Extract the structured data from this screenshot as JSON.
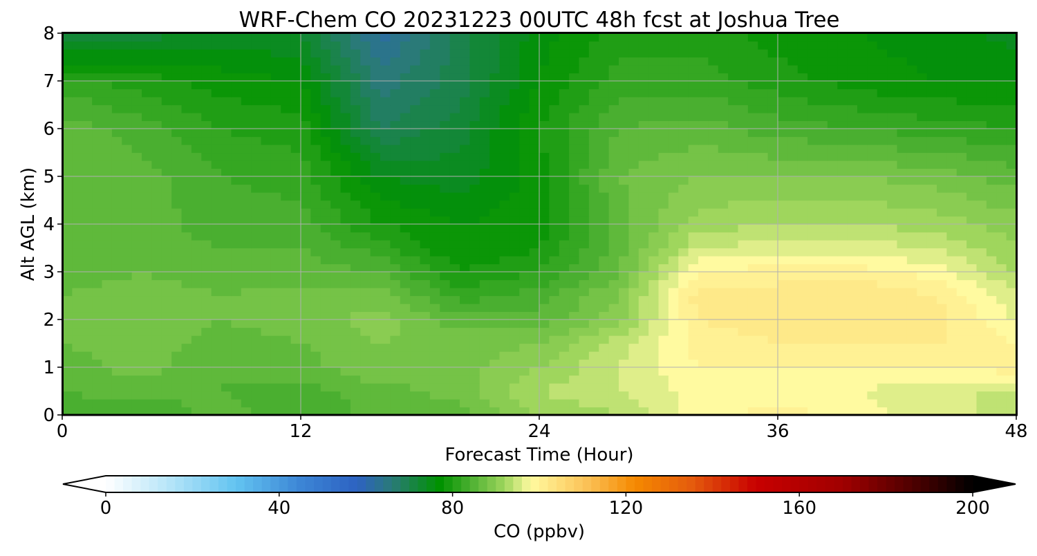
{
  "chart_data": {
    "type": "heatmap",
    "title": "WRF-Chem CO  20231223 00UTC 48h fcst at Joshua Tree",
    "xlabel": "Forecast Time (Hour)",
    "ylabel": "Alt AGL (km)",
    "xlim": [
      0,
      48
    ],
    "ylim": [
      0,
      8
    ],
    "x_ticks": [
      0,
      12,
      24,
      36,
      48
    ],
    "y_ticks": [
      0,
      1,
      2,
      3,
      4,
      5,
      6,
      7,
      8
    ],
    "grid": true,
    "x_hours": [
      0,
      4,
      8,
      12,
      16,
      20,
      24,
      28,
      32,
      36,
      40,
      44,
      48
    ],
    "z_km": [
      0,
      0.5,
      1,
      1.5,
      2,
      2.5,
      3,
      3.5,
      4,
      5,
      6,
      7,
      8
    ],
    "co_ppbv": [
      [
        84,
        83,
        86,
        83,
        86,
        86,
        91,
        93,
        98,
        100,
        98,
        96,
        94
      ],
      [
        85,
        86,
        85,
        84,
        86,
        88,
        93,
        95,
        98,
        98,
        97,
        95,
        95
      ],
      [
        86,
        88,
        85,
        86,
        89,
        88,
        91,
        95,
        99,
        99,
        99,
        99,
        100
      ],
      [
        87,
        88,
        86,
        87,
        89,
        88,
        89,
        94,
        100,
        101,
        101,
        101,
        99
      ],
      [
        87,
        89,
        87,
        88,
        90,
        86,
        86,
        90,
        101,
        102,
        103,
        102,
        97
      ],
      [
        87,
        88,
        87,
        88,
        88,
        82,
        84,
        89,
        102,
        102,
        103,
        101,
        95
      ],
      [
        86,
        87,
        86,
        86,
        85,
        79,
        81,
        87,
        99,
        100,
        100,
        98,
        93
      ],
      [
        86,
        86,
        85,
        85,
        82,
        77,
        79,
        86,
        95,
        96,
        96,
        95,
        91
      ],
      [
        86,
        86,
        84,
        84,
        79,
        77,
        78,
        86,
        92,
        93,
        93,
        92,
        90
      ],
      [
        87,
        86,
        83,
        82,
        75,
        74,
        78,
        87,
        89,
        89,
        89,
        88,
        86
      ],
      [
        86,
        84,
        81,
        80,
        69,
        72,
        79,
        85,
        86,
        84,
        83,
        82,
        81
      ],
      [
        82,
        80,
        78,
        77,
        66,
        70,
        77,
        82,
        82,
        80,
        78,
        77,
        77
      ],
      [
        70,
        72,
        74,
        73,
        62,
        70,
        76,
        80,
        80,
        78,
        77,
        76,
        74
      ]
    ],
    "colorbar": {
      "label": "CO  (ppbv)",
      "min": 0,
      "max": 200,
      "ticks": [
        0,
        40,
        80,
        120,
        160,
        200
      ],
      "extend": "both",
      "orientation": "horizontal",
      "stops": [
        {
          "v": 0,
          "c": "#ffffff"
        },
        {
          "v": 15,
          "c": "#b4e4f8"
        },
        {
          "v": 30,
          "c": "#63c4f1"
        },
        {
          "v": 45,
          "c": "#3c85d5"
        },
        {
          "v": 58,
          "c": "#2d62c2"
        },
        {
          "v": 66,
          "c": "#2a7a78"
        },
        {
          "v": 77,
          "c": "#009200"
        },
        {
          "v": 84,
          "c": "#4aaf30"
        },
        {
          "v": 92,
          "c": "#9fd65d"
        },
        {
          "v": 98,
          "c": "#fffaa0"
        },
        {
          "v": 104,
          "c": "#fee07d"
        },
        {
          "v": 112,
          "c": "#fbbd50"
        },
        {
          "v": 122,
          "c": "#f58900"
        },
        {
          "v": 135,
          "c": "#e55c0d"
        },
        {
          "v": 150,
          "c": "#c80000"
        },
        {
          "v": 170,
          "c": "#a00000"
        },
        {
          "v": 190,
          "c": "#3a0000"
        },
        {
          "v": 200,
          "c": "#000000"
        }
      ]
    }
  }
}
